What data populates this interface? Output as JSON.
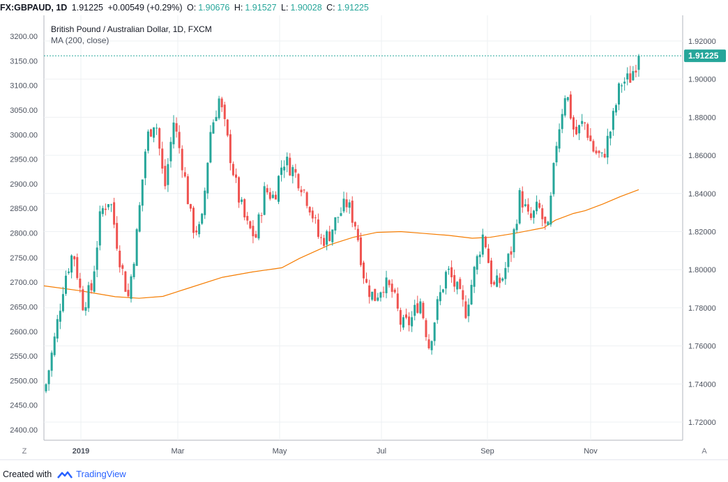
{
  "header": {
    "symbol": "FX:GBPAUD, 1D",
    "last": "1.91225",
    "change": "+0.00549 (+0.29%)",
    "open_label": "O:",
    "open": "1.90676",
    "high_label": "H:",
    "high": "1.91527",
    "low_label": "L:",
    "low": "1.90028",
    "close_label": "C:",
    "close": "1.91225"
  },
  "legend": {
    "title": "British Pound / Australian Dollar, 1D, FXCM",
    "indicator": "MA (200, close)"
  },
  "footer": {
    "created_with": "Created with",
    "brand": "TradingView"
  },
  "corner": {
    "left": "Z",
    "right": "A"
  },
  "colors": {
    "up": "#26a69a",
    "down": "#ef5350",
    "ma": "#f57c00",
    "price_line": "#26a69a",
    "grid": "#eef0f3"
  },
  "chart_data": {
    "type": "candlestick",
    "title": "British Pound / Australian Dollar, 1D, FXCM",
    "left_axis": {
      "ticks": [
        "3200.00",
        "3150.00",
        "3100.00",
        "3050.00",
        "3000.00",
        "2950.00",
        "2900.00",
        "2850.00",
        "2800.00",
        "2750.00",
        "2700.00",
        "2650.00",
        "2600.00",
        "2550.00",
        "2500.00",
        "2450.00",
        "2400.00"
      ]
    },
    "right_axis": {
      "ticks": [
        "1.92000",
        "1.90000",
        "1.88000",
        "1.86000",
        "1.84000",
        "1.82000",
        "1.80000",
        "1.78000",
        "1.76000",
        "1.74000",
        "1.72000"
      ],
      "range": [
        1.7105,
        1.9335
      ]
    },
    "x_ticks": [
      "2019",
      "Mar",
      "May",
      "Jul",
      "Sep",
      "Nov"
    ],
    "last_price": {
      "value": 1.91225,
      "label": "1.91225"
    },
    "price_path": [
      [
        1.74,
        1.742
      ],
      [
        1.765,
        1.768
      ],
      [
        1.795,
        1.798
      ],
      [
        1.81,
        1.812
      ],
      [
        1.782,
        1.785
      ],
      [
        1.79,
        1.792
      ],
      [
        1.83,
        1.833
      ],
      [
        1.838,
        1.84
      ],
      [
        1.808,
        1.81
      ],
      [
        1.785,
        1.788
      ],
      [
        1.82,
        1.822
      ],
      [
        1.868,
        1.87
      ],
      [
        1.88,
        1.882
      ],
      [
        1.842,
        1.844
      ],
      [
        1.878,
        1.88
      ],
      [
        1.855,
        1.857
      ],
      [
        1.823,
        1.825
      ],
      [
        1.82,
        1.822
      ],
      [
        1.872,
        1.874
      ],
      [
        1.89,
        1.892
      ],
      [
        1.865,
        1.867
      ],
      [
        1.84,
        1.842
      ],
      [
        1.823,
        1.825
      ],
      [
        1.817,
        1.82
      ],
      [
        1.842,
        1.844
      ],
      [
        1.838,
        1.84
      ],
      [
        1.858,
        1.86
      ],
      [
        1.853,
        1.855
      ],
      [
        1.845,
        1.847
      ],
      [
        1.833,
        1.835
      ],
      [
        1.815,
        1.818
      ],
      [
        1.818,
        1.82
      ],
      [
        1.828,
        1.83
      ],
      [
        1.835,
        1.837
      ],
      [
        1.823,
        1.825
      ],
      [
        1.793,
        1.795
      ],
      [
        1.785,
        1.788
      ],
      [
        1.793,
        1.795
      ],
      [
        1.788,
        1.79
      ],
      [
        1.77,
        1.772
      ],
      [
        1.773,
        1.775
      ],
      [
        1.785,
        1.788
      ],
      [
        1.76,
        1.763
      ],
      [
        1.783,
        1.785
      ],
      [
        1.8,
        1.802
      ],
      [
        1.79,
        1.792
      ],
      [
        1.778,
        1.78
      ],
      [
        1.8,
        1.802
      ],
      [
        1.82,
        1.822
      ],
      [
        1.79,
        1.792
      ],
      [
        1.795,
        1.797
      ],
      [
        1.81,
        1.812
      ],
      [
        1.84,
        1.842
      ],
      [
        1.825,
        1.827
      ],
      [
        1.833,
        1.835
      ],
      [
        1.818,
        1.82
      ],
      [
        1.868,
        1.87
      ],
      [
        1.895,
        1.897
      ],
      [
        1.87,
        1.872
      ],
      [
        1.878,
        1.88
      ],
      [
        1.863,
        1.865
      ],
      [
        1.858,
        1.86
      ],
      [
        1.875,
        1.877
      ],
      [
        1.898,
        1.9
      ],
      [
        1.9,
        1.902
      ],
      [
        1.912,
        1.91225
      ]
    ],
    "ma_200": [
      [
        0,
        1.7915
      ],
      [
        0.06,
        1.789
      ],
      [
        0.12,
        1.7858
      ],
      [
        0.16,
        1.785
      ],
      [
        0.2,
        1.786
      ],
      [
        0.24,
        1.79
      ],
      [
        0.3,
        1.796
      ],
      [
        0.35,
        1.7988
      ],
      [
        0.4,
        1.801
      ],
      [
        0.43,
        1.806
      ],
      [
        0.48,
        1.813
      ],
      [
        0.52,
        1.817
      ],
      [
        0.56,
        1.8196
      ],
      [
        0.6,
        1.82
      ],
      [
        0.64,
        1.819
      ],
      [
        0.68,
        1.818
      ],
      [
        0.72,
        1.8165
      ],
      [
        0.75,
        1.817
      ],
      [
        0.79,
        1.819
      ],
      [
        0.84,
        1.822
      ],
      [
        0.86,
        1.826
      ],
      [
        0.89,
        1.8295
      ],
      [
        0.91,
        1.831
      ],
      [
        0.94,
        1.8345
      ],
      [
        0.97,
        1.8385
      ],
      [
        1.0,
        1.842
      ]
    ]
  }
}
